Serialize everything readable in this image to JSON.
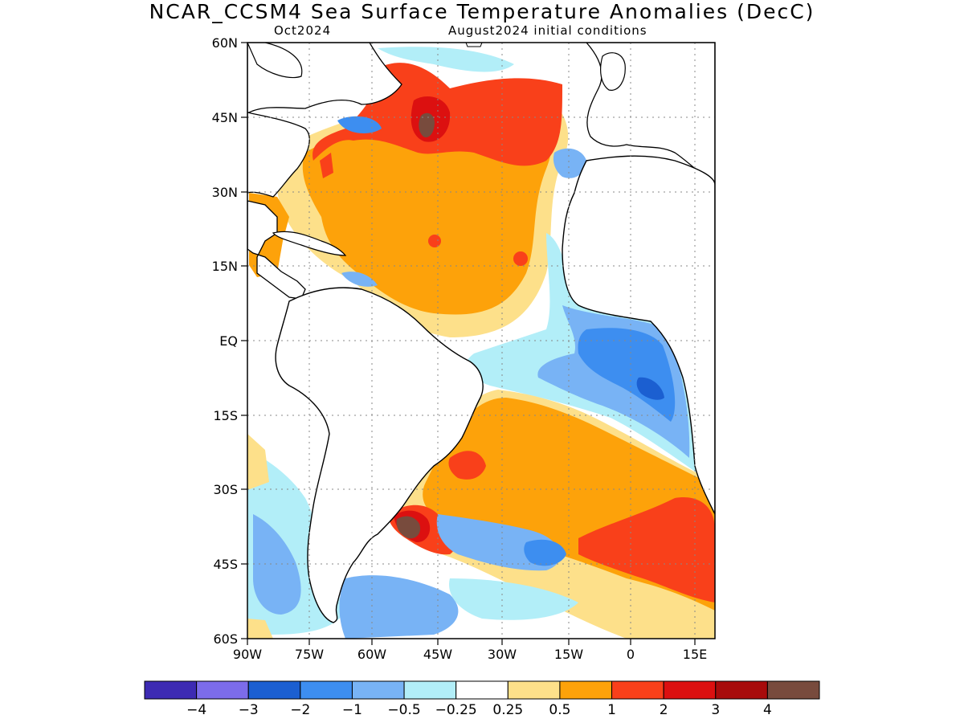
{
  "title": "NCAR_CCSM4 Sea Surface Temperature Anomalies (DecC)",
  "subtitle_left": "Oct2024",
  "subtitle_right": "August2024 initial conditions",
  "lat_ticks": [
    "60N",
    "45N",
    "30N",
    "15N",
    "EQ",
    "15S",
    "30S",
    "45S",
    "60S"
  ],
  "lon_ticks": [
    "90W",
    "75W",
    "60W",
    "45W",
    "30W",
    "15W",
    "0",
    "15E"
  ],
  "colorbar": {
    "colors": [
      "#3d2bb3",
      "#7c6cea",
      "#1b5fd1",
      "#3d8ef0",
      "#78b3f5",
      "#b2eef8",
      "#ffffff",
      "#fde08a",
      "#fda20a",
      "#f9401a",
      "#dc1010",
      "#a80b0b",
      "#784b3d"
    ],
    "labels": [
      "−4",
      "−3",
      "−2",
      "−1",
      "−0.5",
      "−0.25",
      "0.25",
      "0.5",
      "1",
      "2",
      "3",
      "4"
    ]
  },
  "anomaly_colors": {
    "neg_strong": "#1b5fd1",
    "neg_mid": "#3d8ef0",
    "neg_light": "#78b3f5",
    "neg_pale": "#b2eef8",
    "pos_pale": "#fde08a",
    "pos_mid": "#fda20a",
    "pos_strong": "#f9401a",
    "pos_stronger": "#dc1010",
    "pos_max": "#784b3d"
  }
}
